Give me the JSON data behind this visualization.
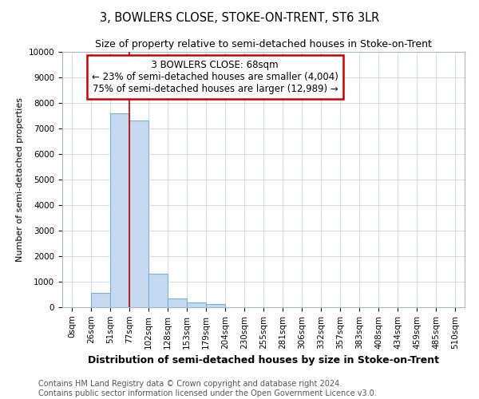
{
  "title": "3, BOWLERS CLOSE, STOKE-ON-TRENT, ST6 3LR",
  "subtitle": "Size of property relative to semi-detached houses in Stoke-on-Trent",
  "xlabel": "Distribution of semi-detached houses by size in Stoke-on-Trent",
  "ylabel": "Number of semi-detached properties",
  "categories": [
    "0sqm",
    "26sqm",
    "51sqm",
    "77sqm",
    "102sqm",
    "128sqm",
    "153sqm",
    "179sqm",
    "204sqm",
    "230sqm",
    "255sqm",
    "281sqm",
    "306sqm",
    "332sqm",
    "357sqm",
    "383sqm",
    "408sqm",
    "434sqm",
    "459sqm",
    "485sqm",
    "510sqm"
  ],
  "bar_values": [
    0,
    550,
    7600,
    7300,
    1300,
    350,
    175,
    125,
    0,
    0,
    0,
    0,
    0,
    0,
    0,
    0,
    0,
    0,
    0,
    0
  ],
  "bar_color": "#c5d9f0",
  "bar_edge_color": "#7bafd4",
  "grid_color": "#c8d8ec",
  "property_label": "3 BOWLERS CLOSE: 68sqm",
  "pct_smaller": 23,
  "count_smaller": "4,004",
  "pct_larger": 75,
  "count_larger": "12,989",
  "vline_bin_index": 2,
  "annotation_box_facecolor": "#ffffff",
  "annotation_box_edgecolor": "#cc0000",
  "ylim": [
    0,
    10000
  ],
  "yticks": [
    0,
    1000,
    2000,
    3000,
    4000,
    5000,
    6000,
    7000,
    8000,
    9000,
    10000
  ],
  "footer": "Contains HM Land Registry data © Crown copyright and database right 2024.\nContains public sector information licensed under the Open Government Licence v3.0.",
  "title_fontsize": 10.5,
  "subtitle_fontsize": 9,
  "xlabel_fontsize": 9,
  "ylabel_fontsize": 8,
  "tick_fontsize": 7.5,
  "annotation_fontsize": 8.5,
  "footer_fontsize": 7
}
